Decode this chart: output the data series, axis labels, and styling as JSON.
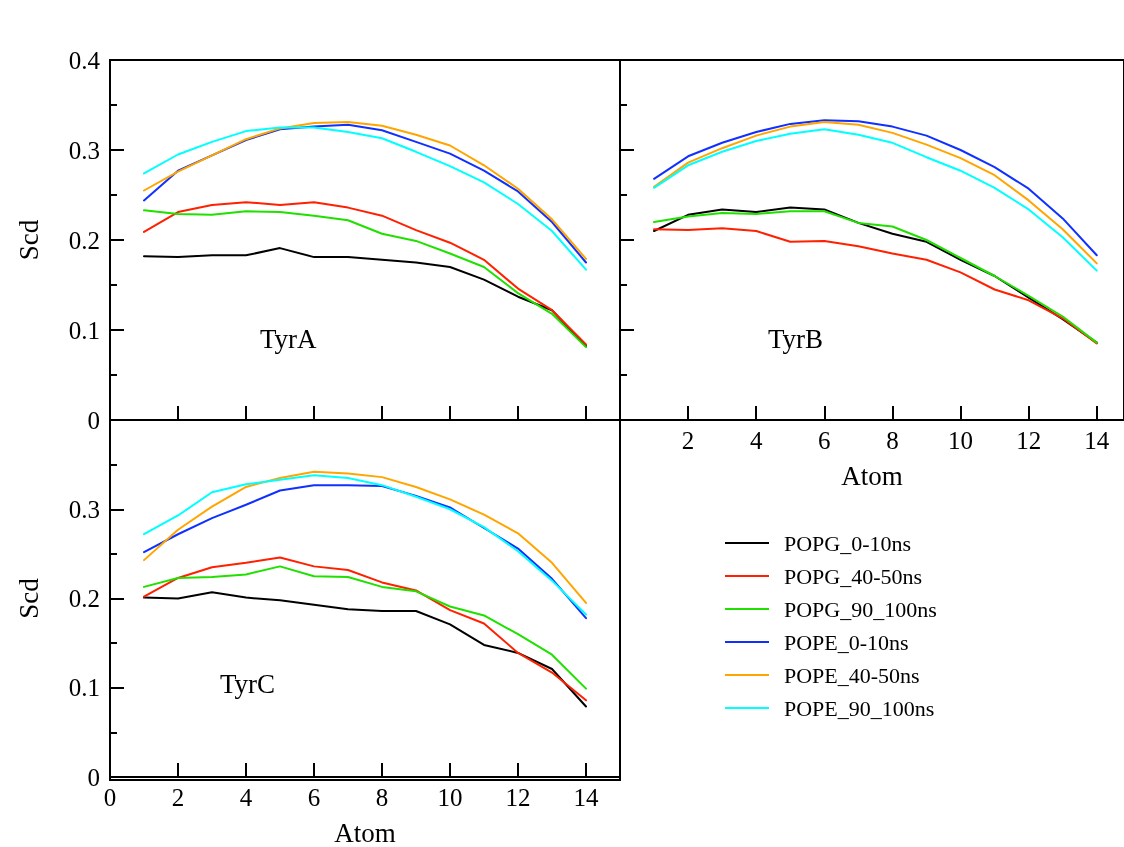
{
  "chart_data": [
    {
      "type": "line",
      "ylabel": "Scd",
      "annotations": [
        "TyrA"
      ],
      "x": [
        1,
        2,
        3,
        4,
        5,
        6,
        7,
        8,
        9,
        10,
        11,
        12,
        13,
        14
      ],
      "xlim": [
        0,
        15
      ],
      "xticks": [
        2,
        4,
        6,
        8,
        10,
        12,
        14
      ],
      "ylim": [
        0,
        0.4
      ],
      "yticks": [
        0,
        0.1,
        0.2,
        0.3,
        0.4
      ],
      "tick_labels": "y",
      "grid": false,
      "legend": false,
      "marker": "none",
      "line_style": "solid",
      "series": [
        {
          "color": "#000000",
          "values": [
            0.182,
            0.181,
            0.183,
            0.183,
            0.191,
            0.181,
            0.181,
            0.178,
            0.175,
            0.17,
            0.156,
            0.137,
            0.122,
            0.082
          ]
        },
        {
          "color": "#ff2000",
          "values": [
            0.209,
            0.231,
            0.239,
            0.242,
            0.239,
            0.242,
            0.236,
            0.227,
            0.211,
            0.197,
            0.178,
            0.146,
            0.122,
            0.084
          ]
        },
        {
          "color": "#20e000",
          "values": [
            0.233,
            0.229,
            0.228,
            0.232,
            0.231,
            0.227,
            0.222,
            0.207,
            0.199,
            0.185,
            0.17,
            0.141,
            0.118,
            0.081
          ]
        },
        {
          "color": "#1030ff",
          "values": [
            0.244,
            0.277,
            0.294,
            0.311,
            0.323,
            0.326,
            0.328,
            0.322,
            0.309,
            0.296,
            0.277,
            0.254,
            0.22,
            0.175
          ]
        },
        {
          "color": "#ffa500",
          "values": [
            0.255,
            0.276,
            0.294,
            0.312,
            0.324,
            0.33,
            0.331,
            0.327,
            0.317,
            0.305,
            0.283,
            0.257,
            0.223,
            0.179
          ]
        },
        {
          "color": "#00ffff",
          "values": [
            0.274,
            0.295,
            0.309,
            0.321,
            0.325,
            0.325,
            0.32,
            0.313,
            0.298,
            0.282,
            0.264,
            0.24,
            0.21,
            0.167
          ]
        }
      ]
    },
    {
      "type": "line",
      "xlabel": "Atom",
      "annotations": [
        "TyrB"
      ],
      "x": [
        1,
        2,
        3,
        4,
        5,
        6,
        7,
        8,
        9,
        10,
        11,
        12,
        13,
        14
      ],
      "xlim": [
        0,
        14.8
      ],
      "xticks": [
        2,
        4,
        6,
        8,
        10,
        12,
        14
      ],
      "ylim": [
        0,
        0.4
      ],
      "yticks": [
        {
          "value": 0,
          "label": null
        },
        {
          "value": 0.1,
          "label": null
        },
        {
          "value": 0.2,
          "label": null
        },
        {
          "value": 0.3,
          "label": null
        },
        {
          "value": 0.4,
          "label": null
        }
      ],
      "tick_labels": "x",
      "grid": false,
      "legend": false,
      "marker": "none",
      "line_style": "solid",
      "series": [
        {
          "color": "#000000",
          "values": [
            0.21,
            0.228,
            0.234,
            0.231,
            0.236,
            0.234,
            0.219,
            0.207,
            0.198,
            0.178,
            0.16,
            0.136,
            0.112,
            0.086
          ]
        },
        {
          "color": "#ff2000",
          "values": [
            0.212,
            0.211,
            0.213,
            0.21,
            0.198,
            0.199,
            0.193,
            0.185,
            0.178,
            0.164,
            0.145,
            0.133,
            0.113,
            0.085
          ]
        },
        {
          "color": "#20e000",
          "values": [
            0.22,
            0.226,
            0.23,
            0.229,
            0.232,
            0.232,
            0.219,
            0.215,
            0.2,
            0.18,
            0.16,
            0.138,
            0.115,
            0.086
          ]
        },
        {
          "color": "#1030ff",
          "values": [
            0.268,
            0.293,
            0.308,
            0.32,
            0.329,
            0.333,
            0.332,
            0.326,
            0.316,
            0.3,
            0.281,
            0.257,
            0.224,
            0.183
          ]
        },
        {
          "color": "#ffa500",
          "values": [
            0.259,
            0.286,
            0.302,
            0.316,
            0.326,
            0.331,
            0.328,
            0.319,
            0.306,
            0.291,
            0.272,
            0.244,
            0.212,
            0.174
          ]
        },
        {
          "color": "#00ffff",
          "values": [
            0.258,
            0.283,
            0.298,
            0.31,
            0.318,
            0.323,
            0.317,
            0.308,
            0.292,
            0.277,
            0.258,
            0.234,
            0.203,
            0.166
          ]
        }
      ]
    },
    {
      "type": "line",
      "xlabel": "Atom",
      "ylabel": "Scd",
      "annotations": [
        "TyrC"
      ],
      "x": [
        1,
        2,
        3,
        4,
        5,
        6,
        7,
        8,
        9,
        10,
        11,
        12,
        13,
        14
      ],
      "xlim": [
        0,
        15
      ],
      "xticks": [
        0,
        2,
        4,
        6,
        8,
        10,
        12,
        14
      ],
      "ylim": [
        0,
        0.4
      ],
      "yticks": [
        0,
        0.1,
        0.2,
        0.3,
        {
          "value": 0.4,
          "label": null
        }
      ],
      "grid": false,
      "legend": "right",
      "marker": "none",
      "line_style": "solid",
      "series": [
        {
          "name": "POPG_0-10ns",
          "color": "#000000",
          "values": [
            0.201,
            0.2,
            0.207,
            0.201,
            0.198,
            0.193,
            0.188,
            0.186,
            0.186,
            0.171,
            0.148,
            0.139,
            0.121,
            0.079
          ]
        },
        {
          "name": "POPG_40-50ns",
          "color": "#ff2000",
          "values": [
            0.202,
            0.223,
            0.235,
            0.24,
            0.246,
            0.236,
            0.232,
            0.218,
            0.209,
            0.187,
            0.172,
            0.139,
            0.117,
            0.086
          ]
        },
        {
          "name": "POPG_90_100ns",
          "color": "#20e000",
          "values": [
            0.213,
            0.223,
            0.224,
            0.227,
            0.236,
            0.225,
            0.224,
            0.213,
            0.208,
            0.191,
            0.181,
            0.16,
            0.137,
            0.099
          ]
        },
        {
          "name": "POPE_0-10ns",
          "color": "#1030ff",
          "values": [
            0.252,
            0.272,
            0.29,
            0.305,
            0.321,
            0.327,
            0.327,
            0.326,
            0.315,
            0.302,
            0.279,
            0.256,
            0.222,
            0.178
          ]
        },
        {
          "name": "POPE_40-50ns",
          "color": "#ffa500",
          "values": [
            0.243,
            0.277,
            0.303,
            0.325,
            0.335,
            0.342,
            0.34,
            0.336,
            0.325,
            0.311,
            0.294,
            0.273,
            0.24,
            0.195
          ]
        },
        {
          "name": "POPE_90_100ns",
          "color": "#00ffff",
          "values": [
            0.272,
            0.293,
            0.319,
            0.328,
            0.333,
            0.338,
            0.335,
            0.327,
            0.314,
            0.3,
            0.28,
            0.253,
            0.22,
            0.182
          ]
        }
      ]
    }
  ]
}
